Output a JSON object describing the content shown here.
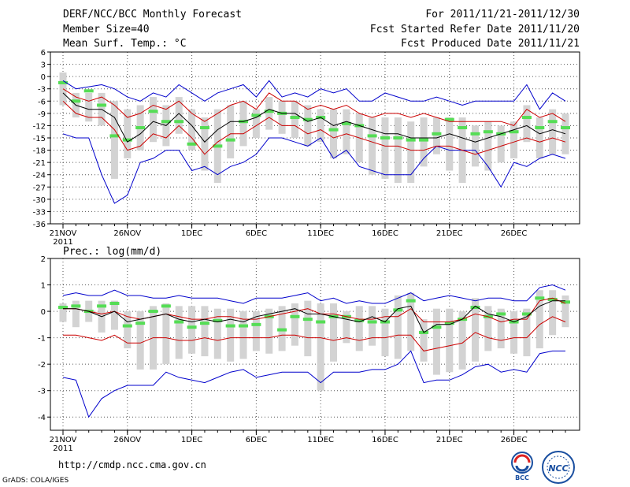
{
  "header": {
    "title": "DERF/NCC/BCC Monthly Forecast",
    "member_size": "Member Size=40",
    "variable": "Mean Surf. Temp.: °C",
    "period": "For 2011/11/21-2011/12/30",
    "start_date": "Fcst Started Refer Date 2011/11/20",
    "produced_date": "Fcst Produced Date 2011/11/21"
  },
  "footer": {
    "url": "http://cmdp.ncc.cma.gov.cn",
    "credit": "GrADS: COLA/IGES",
    "logo_left": "BCC",
    "logo_right": "NCC"
  },
  "colors": {
    "max_min": "#0000cc",
    "spread": "#cc0000",
    "mean": "#000000",
    "box": "#d3d3d3",
    "median": "#55dd55"
  },
  "chart_data": [
    {
      "type": "line",
      "title": "Mean Surf. Temp.: °C",
      "x_tick_labels": [
        "21NOV",
        "26NOV",
        "1DEC",
        "6DEC",
        "11DEC",
        "16DEC",
        "21DEC",
        "26DEC"
      ],
      "x_year": "2011",
      "days": 40,
      "ylim": [
        -36,
        6
      ],
      "y_ticks": [
        6,
        3,
        0,
        -3,
        -6,
        -9,
        -12,
        -15,
        -18,
        -21,
        -24,
        -27,
        -30,
        -33,
        -36
      ],
      "y_tick_labels": [
        "6",
        "3",
        "0",
        "-3",
        "-6",
        "-9",
        "-12",
        "-15",
        "-18",
        "-21",
        "-24",
        "-27",
        "-30",
        "-33",
        "-36"
      ],
      "series": {
        "max": [
          -1,
          -3,
          -2.5,
          -2,
          -3,
          -5,
          -6,
          -4,
          -5,
          -2,
          -4,
          -6,
          -4,
          -3,
          -2,
          -5,
          -1,
          -5,
          -4,
          -5,
          -3,
          -4,
          -3,
          -6,
          -6,
          -4,
          -5,
          -6,
          -6,
          -5,
          -6,
          -7,
          -6,
          -6,
          -6,
          -6,
          -2,
          -8,
          -4,
          -6
        ],
        "upper": [
          -3,
          -5,
          -6,
          -5,
          -7,
          -10,
          -9,
          -7,
          -8,
          -6,
          -9,
          -11,
          -9,
          -7,
          -6,
          -8,
          -4,
          -6,
          -6,
          -8,
          -7,
          -8,
          -7,
          -9,
          -10,
          -9,
          -9,
          -10,
          -9,
          -10,
          -11,
          -11,
          -11,
          -11,
          -11,
          -12,
          -8,
          -10,
          -9,
          -11
        ],
        "mean": [
          -4,
          -7,
          -8,
          -8,
          -10,
          -16,
          -14,
          -11,
          -12,
          -9,
          -12,
          -16,
          -13,
          -11,
          -11,
          -10,
          -8,
          -9,
          -9,
          -11,
          -10,
          -12,
          -11,
          -12,
          -13,
          -14,
          -14,
          -15,
          -15,
          -15,
          -14,
          -15,
          -16,
          -15,
          -14,
          -13,
          -12,
          -14,
          -13,
          -14
        ],
        "lower": [
          -6,
          -9,
          -10,
          -10,
          -13,
          -18,
          -17,
          -14,
          -15,
          -12,
          -15,
          -19,
          -16,
          -14,
          -14,
          -12,
          -10,
          -12,
          -12,
          -14,
          -13,
          -15,
          -14,
          -15,
          -16,
          -17,
          -17,
          -18,
          -18,
          -17,
          -17,
          -18,
          -19,
          -18,
          -17,
          -16,
          -15,
          -16,
          -15,
          -16
        ],
        "min": [
          -14,
          -15,
          -15,
          -24,
          -31,
          -29,
          -21,
          -20,
          -18,
          -18,
          -23,
          -22,
          -24,
          -22,
          -21,
          -19,
          -15,
          -15,
          -16,
          -17,
          -15,
          -20,
          -18,
          -22,
          -23,
          -24,
          -24,
          -24,
          -20,
          -17,
          -18,
          -18,
          -18,
          -22,
          -27,
          -21,
          -22,
          -20,
          -19,
          -20
        ],
        "box_top": [
          1,
          -4,
          -4,
          -4,
          -6,
          -8,
          -7,
          -5,
          -7,
          -5,
          -8,
          -10,
          -8,
          -7,
          -6,
          -8,
          -5,
          -6,
          -6,
          -7,
          -8,
          -8,
          -8,
          -9,
          -10,
          -10,
          -10,
          -11,
          -10,
          -10,
          -10,
          -10,
          -12,
          -11,
          -12,
          -11,
          -7,
          -10,
          -8,
          -9
        ],
        "box_bottom": [
          -7,
          -10,
          -11,
          -12,
          -25,
          -20,
          -18,
          -16,
          -17,
          -14,
          -18,
          -23,
          -26,
          -20,
          -17,
          -15,
          -13,
          -14,
          -15,
          -17,
          -16,
          -20,
          -19,
          -21,
          -24,
          -25,
          -26,
          -26,
          -22,
          -19,
          -23,
          -26,
          -22,
          -23,
          -21,
          -20,
          -16,
          -20,
          -19,
          -19
        ],
        "median": [
          -1.5,
          -6,
          -3.5,
          -7,
          -14.5,
          -15.5,
          -12.5,
          -8.5,
          -11,
          -11,
          -16.5,
          -12.5,
          -17,
          -15.5,
          -11,
          -9.5,
          -8.5,
          -9,
          -10,
          -10.5,
          -10,
          -13,
          -11.5,
          -12,
          -14.5,
          -15,
          -15,
          -15.5,
          -15.5,
          -14,
          -10.5,
          -12.5,
          -14,
          -13.5,
          -14,
          -13.5,
          -10,
          -12.5,
          -11,
          -12.5
        ]
      }
    },
    {
      "type": "line",
      "title": "Prec.: log(mm/d)",
      "x_tick_labels": [
        "21NOV",
        "26NOV",
        "1DEC",
        "6DEC",
        "11DEC",
        "16DEC",
        "21DEC",
        "26DEC"
      ],
      "x_year": "2011",
      "days": 40,
      "ylim": [
        -4.5,
        2
      ],
      "y_ticks": [
        2,
        1,
        0,
        -1,
        -2,
        -3,
        -4
      ],
      "y_tick_labels": [
        "2",
        "1",
        "0",
        "-1",
        "-2",
        "-3",
        "-4"
      ],
      "series": {
        "max": [
          0.6,
          0.7,
          0.6,
          0.6,
          0.8,
          0.6,
          0.6,
          0.5,
          0.5,
          0.6,
          0.5,
          0.5,
          0.5,
          0.4,
          0.3,
          0.5,
          0.5,
          0.5,
          0.6,
          0.7,
          0.4,
          0.5,
          0.3,
          0.4,
          0.3,
          0.3,
          0.5,
          0.7,
          0.4,
          0.5,
          0.6,
          0.5,
          0.4,
          0.5,
          0.5,
          0.4,
          0.4,
          0.9,
          1.0,
          0.8
        ],
        "upper": [
          0.1,
          0.1,
          0.0,
          -0.1,
          0.0,
          -0.2,
          -0.3,
          -0.2,
          -0.1,
          -0.2,
          -0.3,
          -0.3,
          -0.2,
          -0.2,
          -0.3,
          -0.3,
          -0.2,
          -0.1,
          0.0,
          0.1,
          -0.1,
          -0.1,
          -0.2,
          -0.3,
          -0.3,
          -0.2,
          -0.2,
          0.1,
          -0.4,
          -0.4,
          -0.4,
          -0.3,
          -0.1,
          -0.2,
          -0.4,
          -0.3,
          -0.3,
          0.4,
          0.5,
          0.3
        ],
        "mean": [
          0.1,
          0.1,
          0.0,
          -0.2,
          0.0,
          -0.4,
          -0.3,
          -0.2,
          -0.1,
          -0.3,
          -0.4,
          -0.3,
          -0.4,
          -0.3,
          -0.4,
          -0.2,
          -0.1,
          0.0,
          0.1,
          -0.1,
          -0.1,
          -0.2,
          -0.3,
          -0.4,
          -0.2,
          -0.4,
          0.1,
          0.2,
          -0.8,
          -0.5,
          -0.5,
          -0.3,
          0.2,
          -0.1,
          -0.2,
          -0.4,
          -0.2,
          0.2,
          0.4,
          0.4
        ],
        "lower": [
          -0.9,
          -0.9,
          -1.0,
          -1.1,
          -0.9,
          -1.2,
          -1.2,
          -1.0,
          -1.0,
          -1.1,
          -1.1,
          -1.0,
          -1.1,
          -1.0,
          -1.0,
          -1.0,
          -1.0,
          -0.9,
          -0.9,
          -1.0,
          -1.0,
          -1.1,
          -1.0,
          -1.1,
          -1.0,
          -1.0,
          -0.9,
          -0.9,
          -1.5,
          -1.4,
          -1.3,
          -1.2,
          -0.8,
          -1.0,
          -1.1,
          -1.0,
          -1.0,
          -0.5,
          -0.2,
          -0.4
        ],
        "min": [
          -2.5,
          -2.6,
          -4.0,
          -3.3,
          -3.0,
          -2.8,
          -2.8,
          -2.8,
          -2.3,
          -2.5,
          -2.6,
          -2.7,
          -2.5,
          -2.3,
          -2.2,
          -2.5,
          -2.4,
          -2.3,
          -2.3,
          -2.3,
          -2.7,
          -2.3,
          -2.3,
          -2.3,
          -2.2,
          -2.2,
          -2.0,
          -1.5,
          -2.7,
          -2.6,
          -2.6,
          -2.4,
          -2.1,
          -2.0,
          -2.3,
          -2.2,
          -2.3,
          -1.6,
          -1.5,
          -1.5
        ],
        "box_top": [
          0.3,
          0.4,
          0.4,
          0.4,
          0.4,
          0.0,
          0.0,
          0.2,
          0.3,
          0.2,
          0.2,
          0.2,
          0.1,
          0.1,
          0.0,
          0.0,
          0.1,
          0.2,
          0.3,
          0.4,
          0.3,
          0.3,
          0.0,
          0.2,
          0.2,
          0.1,
          0.6,
          0.7,
          -0.3,
          0.1,
          0.1,
          0.0,
          0.5,
          0.2,
          0.1,
          0.0,
          0.1,
          0.8,
          0.8,
          0.6
        ],
        "box_bottom": [
          -0.4,
          -0.6,
          -0.4,
          -0.8,
          -0.7,
          -1.4,
          -2.2,
          -2.2,
          -2.0,
          -1.8,
          -1.6,
          -1.7,
          -1.8,
          -1.9,
          -1.8,
          -1.5,
          -1.6,
          -1.5,
          -1.3,
          -1.7,
          -3.0,
          -1.9,
          -1.2,
          -1.5,
          -1.3,
          -1.7,
          -1.8,
          -1.5,
          -1.9,
          -2.4,
          -2.3,
          -2.2,
          -1.9,
          -1.5,
          -1.4,
          -1.6,
          -1.7,
          -1.4,
          -0.9,
          -0.6
        ],
        "median": [
          0.15,
          0.2,
          0.0,
          0.2,
          0.3,
          -0.55,
          -0.45,
          0.0,
          0.2,
          -0.4,
          -0.6,
          -0.45,
          -0.35,
          -0.55,
          -0.55,
          -0.5,
          -0.2,
          -0.7,
          -0.2,
          -0.3,
          -0.4,
          -0.2,
          -0.2,
          -0.35,
          -0.4,
          -0.4,
          0.05,
          0.4,
          -0.8,
          -0.6,
          -0.45,
          -0.3,
          0.15,
          -0.2,
          -0.1,
          -0.4,
          -0.1,
          0.5,
          0.45,
          0.35
        ]
      }
    }
  ]
}
